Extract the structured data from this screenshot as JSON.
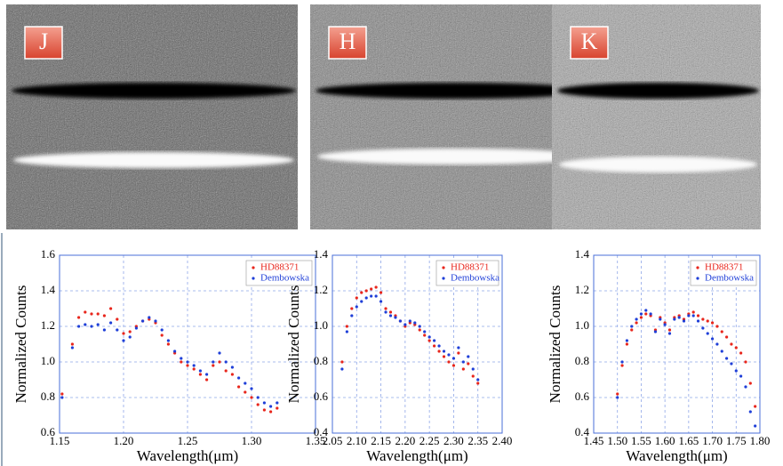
{
  "chart_data": [
    {
      "type": "scatter",
      "panel_label": "J",
      "x_label": "Wavelength(μm)",
      "y_label": "Normalized Counts",
      "grid": true,
      "legend": "upper right",
      "xlim": [
        1.15,
        1.35
      ],
      "xticks": [
        1.15,
        {
          "value": 1.2,
          "label": "1.20"
        },
        1.25,
        {
          "value": 1.3,
          "label": "1.30"
        },
        1.35
      ],
      "ylim": [
        0.6,
        1.6
      ],
      "yticks": [
        0.6,
        0.8,
        {
          "value": 1,
          "label": "1.0"
        },
        1.2,
        1.4,
        1.6
      ],
      "x": [
        1.152,
        1.16,
        1.165,
        1.17,
        1.175,
        1.18,
        1.185,
        1.19,
        1.195,
        1.2,
        1.205,
        1.21,
        1.215,
        1.22,
        1.225,
        1.23,
        1.235,
        1.24,
        1.245,
        1.25,
        1.255,
        1.26,
        1.265,
        1.27,
        1.275,
        1.28,
        1.285,
        1.29,
        1.295,
        1.3,
        1.305,
        1.31,
        1.315,
        1.32
      ],
      "series": [
        {
          "name": "HD88371",
          "color": "#e8261c",
          "values": [
            0.82,
            1.1,
            1.25,
            1.28,
            1.27,
            1.27,
            1.26,
            1.3,
            1.24,
            1.16,
            1.17,
            1.2,
            1.23,
            1.24,
            1.22,
            1.15,
            1.1,
            1.05,
            1.0,
            0.98,
            0.96,
            0.93,
            0.9,
            0.98,
            1.0,
            0.95,
            0.93,
            0.86,
            0.83,
            0.8,
            0.76,
            0.73,
            0.72,
            0.74
          ]
        },
        {
          "name": "Dembowska",
          "color": "#1f3fd8",
          "values": [
            0.8,
            1.08,
            1.2,
            1.21,
            1.2,
            1.21,
            1.18,
            1.22,
            1.18,
            1.12,
            1.14,
            1.19,
            1.23,
            1.25,
            1.23,
            1.18,
            1.12,
            1.06,
            1.02,
            1.0,
            0.98,
            0.95,
            0.93,
            1.0,
            1.05,
            1.0,
            0.97,
            0.91,
            0.88,
            0.85,
            0.8,
            0.77,
            0.75,
            0.77
          ]
        }
      ]
    },
    {
      "type": "scatter",
      "panel_label": "H",
      "x_label": "Wavelength(μm)",
      "y_label": "Normalized Counts",
      "grid": true,
      "legend": "upper right",
      "xlim": [
        2.05,
        2.4
      ],
      "xticks": [
        2.05,
        {
          "value": 2.1,
          "label": "2.10"
        },
        2.15,
        {
          "value": 2.2,
          "label": "2.20"
        },
        2.25,
        {
          "value": 2.3,
          "label": "2.30"
        },
        2.35,
        {
          "value": 2.4,
          "label": "2.40"
        }
      ],
      "ylim": [
        0.4,
        1.4
      ],
      "yticks": [
        0.4,
        0.6,
        0.8,
        {
          "value": 1,
          "label": "1.0"
        },
        1.2,
        1.4
      ],
      "x": [
        2.07,
        2.08,
        2.09,
        2.1,
        2.11,
        2.12,
        2.13,
        2.14,
        2.15,
        2.16,
        2.17,
        2.18,
        2.19,
        2.2,
        2.21,
        2.22,
        2.23,
        2.24,
        2.25,
        2.26,
        2.27,
        2.28,
        2.29,
        2.3,
        2.31,
        2.32,
        2.33,
        2.34,
        2.35
      ],
      "series": [
        {
          "name": "HD88371",
          "color": "#e8261c",
          "values": [
            0.8,
            1.0,
            1.1,
            1.16,
            1.19,
            1.2,
            1.21,
            1.22,
            1.19,
            1.1,
            1.08,
            1.06,
            1.03,
            1.0,
            1.02,
            1.01,
            0.98,
            0.95,
            0.92,
            0.89,
            0.86,
            0.83,
            0.8,
            0.78,
            0.85,
            0.76,
            0.79,
            0.72,
            0.68
          ]
        },
        {
          "name": "Dembowska",
          "color": "#1f3fd8",
          "values": [
            0.76,
            0.97,
            1.06,
            1.11,
            1.14,
            1.16,
            1.17,
            1.17,
            1.14,
            1.08,
            1.06,
            1.05,
            1.03,
            1.01,
            1.03,
            1.02,
            1.0,
            0.97,
            0.94,
            0.92,
            0.89,
            0.86,
            0.84,
            0.82,
            0.88,
            0.8,
            0.83,
            0.76,
            0.7
          ]
        }
      ]
    },
    {
      "type": "scatter",
      "panel_label": "K",
      "x_label": "Wavelength(μm)",
      "y_label": "Normalized Counts",
      "grid": true,
      "legend": "upper right",
      "xlim": [
        1.45,
        1.8
      ],
      "xticks": [
        1.45,
        {
          "value": 1.5,
          "label": "1.50"
        },
        1.55,
        {
          "value": 1.6,
          "label": "1.60"
        },
        1.65,
        {
          "value": 1.7,
          "label": "1.70"
        },
        1.75,
        {
          "value": 1.8,
          "label": "1.80"
        }
      ],
      "ylim": [
        0.4,
        1.4
      ],
      "yticks": [
        0.4,
        0.6,
        0.8,
        {
          "value": 1,
          "label": "1.0"
        },
        1.2,
        1.4
      ],
      "x": [
        1.5,
        1.51,
        1.52,
        1.53,
        1.54,
        1.55,
        1.56,
        1.57,
        1.58,
        1.59,
        1.6,
        1.61,
        1.62,
        1.63,
        1.64,
        1.65,
        1.66,
        1.67,
        1.68,
        1.69,
        1.7,
        1.71,
        1.72,
        1.73,
        1.74,
        1.75,
        1.76,
        1.77,
        1.78,
        1.79
      ],
      "series": [
        {
          "name": "HD88371",
          "color": "#e8261c",
          "values": [
            0.62,
            0.78,
            0.9,
            0.98,
            1.02,
            1.05,
            1.07,
            1.06,
            0.98,
            1.05,
            1.02,
            0.98,
            1.05,
            1.06,
            1.04,
            1.07,
            1.08,
            1.06,
            1.04,
            1.03,
            1.02,
            1.0,
            0.97,
            0.94,
            0.9,
            0.88,
            0.85,
            0.8,
            0.68,
            0.55
          ]
        },
        {
          "name": "Dembowska",
          "color": "#1f3fd8",
          "values": [
            0.6,
            0.8,
            0.92,
            1.0,
            1.04,
            1.07,
            1.09,
            1.07,
            0.97,
            1.04,
            1.01,
            0.96,
            1.04,
            1.05,
            1.03,
            1.06,
            1.06,
            1.03,
            0.99,
            0.96,
            0.93,
            0.9,
            0.86,
            0.82,
            0.79,
            0.75,
            0.72,
            0.66,
            0.52,
            0.44
          ]
        }
      ]
    }
  ]
}
